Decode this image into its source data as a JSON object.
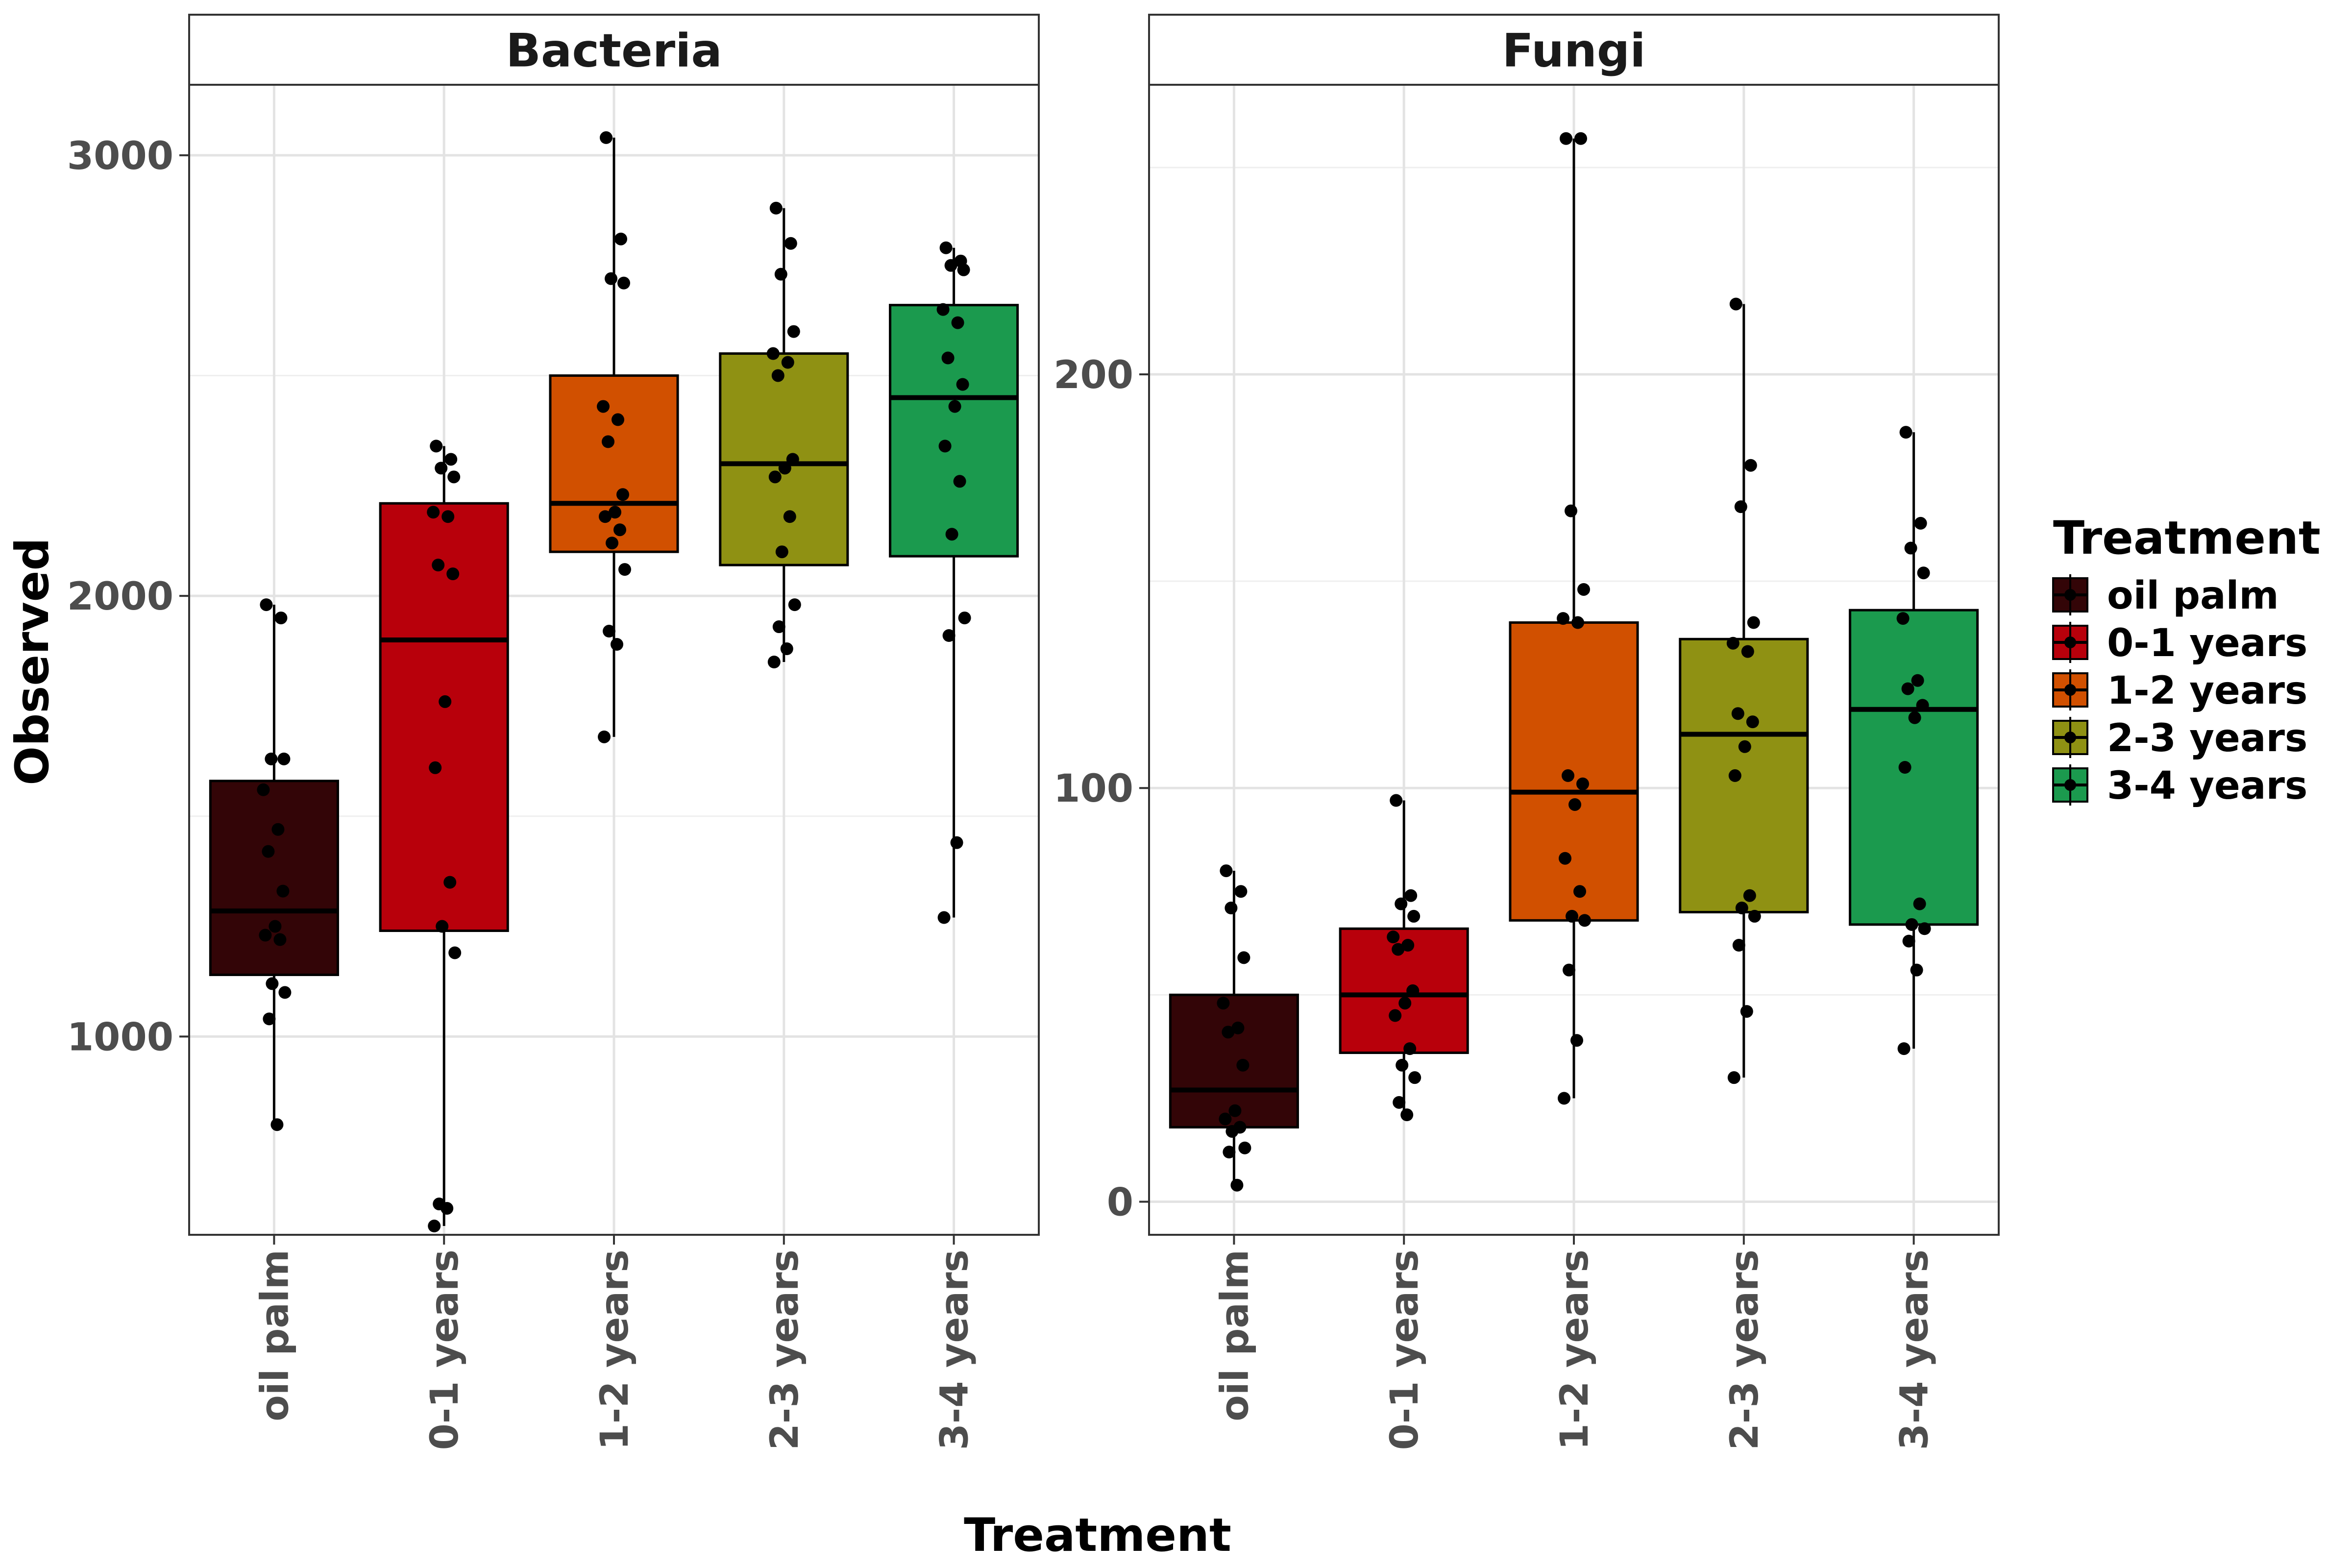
{
  "chart_data": {
    "type": "box",
    "xlabel": "Treatment",
    "ylabel": "Observed",
    "legend": {
      "title": "Treatment",
      "placement": "right",
      "entries": [
        "oil palm",
        "0-1 years",
        "1-2 years",
        "2-3 years",
        "3-4 years"
      ]
    },
    "categories": [
      "oil palm",
      "0-1 years",
      "1-2 years",
      "2-3 years",
      "3-4 years"
    ],
    "colors": [
      "#330507",
      "#b8000b",
      "#d15000",
      "#8f9113",
      "#1b9a4e"
    ],
    "grid": true,
    "panels": [
      {
        "title": "Bacteria",
        "ylim": [
          550,
          3160
        ],
        "yticks": [
          1000,
          2000,
          3000
        ],
        "boxes": [
          {
            "group": "oil palm",
            "q1": 1140,
            "median": 1285,
            "q3": 1580,
            "whisker_low": 800,
            "whisker_high": 1980,
            "points": [
              1980,
              1950,
              1630,
              1630,
              1560,
              1470,
              1420,
              1330,
              1250,
              1230,
              1220,
              1120,
              1100,
              1040,
              800
            ]
          },
          {
            "group": "0-1 years",
            "q1": 1240,
            "median": 1900,
            "q3": 2210,
            "whisker_low": 570,
            "whisker_high": 2340,
            "points": [
              2340,
              2310,
              2290,
              2270,
              2190,
              2180,
              2070,
              2050,
              1760,
              1610,
              1350,
              1250,
              1190,
              620,
              610,
              570
            ]
          },
          {
            "group": "1-2 years",
            "q1": 2100,
            "median": 2210,
            "q3": 2500,
            "whisker_low": 1680,
            "whisker_high": 3040,
            "points": [
              3040,
              2810,
              2720,
              2710,
              2430,
              2400,
              2350,
              2230,
              2190,
              2180,
              2150,
              2120,
              2060,
              1920,
              1890,
              1680
            ]
          },
          {
            "group": "2-3 years",
            "q1": 2070,
            "median": 2300,
            "q3": 2550,
            "whisker_low": 1850,
            "whisker_high": 2880,
            "points": [
              2880,
              2800,
              2730,
              2600,
              2550,
              2530,
              2500,
              2310,
              2290,
              2270,
              2180,
              2100,
              1980,
              1930,
              1880,
              1850
            ]
          },
          {
            "group": "3-4 years",
            "q1": 2090,
            "median": 2450,
            "q3": 2660,
            "whisker_low": 1270,
            "whisker_high": 2790,
            "points": [
              2790,
              2760,
              2750,
              2740,
              2650,
              2620,
              2540,
              2480,
              2430,
              2340,
              2260,
              2140,
              1950,
              1910,
              1440,
              1270
            ]
          }
        ]
      },
      {
        "title": "Fungi",
        "ylim": [
          -8,
          270
        ],
        "yticks": [
          0,
          100,
          200
        ],
        "boxes": [
          {
            "group": "oil palm",
            "q1": 18,
            "median": 27,
            "q3": 50,
            "whisker_low": 4,
            "whisker_high": 80,
            "points": [
              80,
              75,
              71,
              59,
              48,
              42,
              41,
              33,
              22,
              20,
              18,
              17,
              13,
              12,
              4
            ]
          },
          {
            "group": "0-1 years",
            "q1": 36,
            "median": 50,
            "q3": 66,
            "whisker_low": 21,
            "whisker_high": 97,
            "points": [
              97,
              74,
              72,
              69,
              64,
              62,
              61,
              51,
              48,
              45,
              37,
              33,
              30,
              24,
              21
            ]
          },
          {
            "group": "1-2 years",
            "q1": 68,
            "median": 99,
            "q3": 140,
            "whisker_low": 25,
            "whisker_high": 257,
            "points": [
              257,
              257,
              167,
              148,
              141,
              140,
              103,
              101,
              96,
              83,
              75,
              69,
              68,
              56,
              39,
              25
            ]
          },
          {
            "group": "2-3 years",
            "q1": 70,
            "median": 113,
            "q3": 136,
            "whisker_low": 30,
            "whisker_high": 217,
            "points": [
              217,
              178,
              168,
              140,
              135,
              133,
              118,
              116,
              110,
              103,
              74,
              71,
              69,
              62,
              46,
              30
            ]
          },
          {
            "group": "3-4 years",
            "q1": 67,
            "median": 119,
            "q3": 143,
            "whisker_low": 37,
            "whisker_high": 186,
            "points": [
              186,
              164,
              158,
              152,
              141,
              126,
              124,
              120,
              117,
              105,
              72,
              67,
              66,
              63,
              56,
              37
            ]
          }
        ]
      }
    ]
  }
}
